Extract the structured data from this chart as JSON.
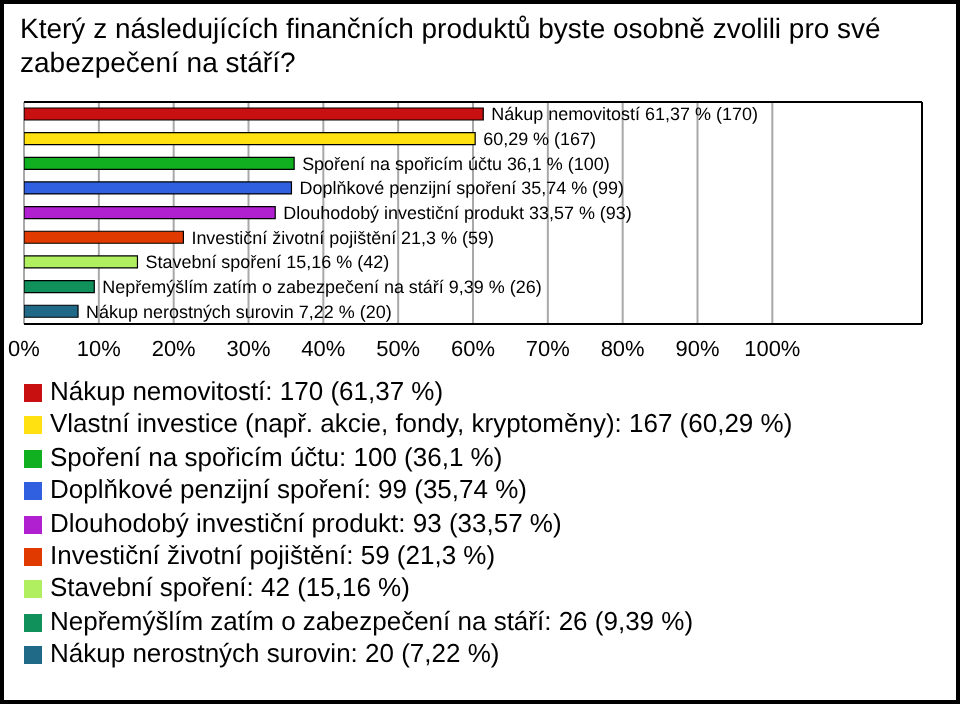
{
  "chart_data": {
    "type": "bar",
    "orientation": "horizontal",
    "stacked": true,
    "title": "Který z následujících finančních produktů byste osobně zvolili pro své zabezpečení na stáří?",
    "categories": [
      null,
      null,
      null,
      null,
      null,
      null,
      null,
      null,
      null
    ],
    "series": [
      {
        "name": "Nákup nemovitostí: 170 (61,37 %)",
        "color": "#c81010",
        "values": [
          61.37,
          null,
          null,
          null,
          null,
          null,
          null,
          null,
          null
        ],
        "value_labels": [
          "Nákup nemovitostí 61,37 % (170)",
          null,
          null,
          null,
          null,
          null,
          null,
          null,
          null
        ]
      },
      {
        "name": "Vlastní investice (např. akcie, fondy, kryptoměny): 167 (60,29 %)",
        "color": "#ffe010",
        "values": [
          null,
          60.29,
          null,
          null,
          null,
          null,
          null,
          null,
          null
        ],
        "value_labels": [
          null,
          "60,29 % (167)",
          null,
          null,
          null,
          null,
          null,
          null,
          null
        ]
      },
      {
        "name": "Spoření na spořicím účtu: 100 (36,1 %)",
        "color": "#10b020",
        "values": [
          null,
          null,
          36.1,
          null,
          null,
          null,
          null,
          null,
          null
        ],
        "value_labels": [
          null,
          null,
          "Spoření na spořicím účtu 36,1 % (100)",
          null,
          null,
          null,
          null,
          null,
          null
        ]
      },
      {
        "name": "Doplňkové penzijní spoření: 99 (35,74 %)",
        "color": "#3060e0",
        "values": [
          null,
          null,
          null,
          35.74,
          null,
          null,
          null,
          null,
          null
        ],
        "value_labels": [
          null,
          null,
          null,
          "Doplňkové penzijní spoření 35,74 % (99)",
          null,
          null,
          null,
          null,
          null
        ]
      },
      {
        "name": "Dlouhodobý investiční produkt: 93 (33,57 %)",
        "color": "#b020d0",
        "values": [
          null,
          null,
          null,
          null,
          33.57,
          null,
          null,
          null,
          null
        ],
        "value_labels": [
          null,
          null,
          null,
          null,
          "Dlouhodobý investiční produkt 33,57 % (93)",
          null,
          null,
          null,
          null
        ]
      },
      {
        "name": "Investiční životní pojištění: 59 (21,3 %)",
        "color": "#e03a00",
        "values": [
          null,
          null,
          null,
          null,
          null,
          21.3,
          null,
          null,
          null
        ],
        "value_labels": [
          null,
          null,
          null,
          null,
          null,
          "Investiční životní pojištění 21,3 % (59)",
          null,
          null,
          null
        ]
      },
      {
        "name": "Stavební spoření: 42 (15,16 %)",
        "color": "#b0f060",
        "values": [
          null,
          null,
          null,
          null,
          null,
          null,
          15.16,
          null,
          null
        ],
        "value_labels": [
          null,
          null,
          null,
          null,
          null,
          null,
          "Stavební spoření 15,16 % (42)",
          null,
          null
        ]
      },
      {
        "name": "Nepřemýšlím zatím o zabezpečení na stáří: 26 (9,39 %)",
        "color": "#10905a",
        "values": [
          null,
          null,
          null,
          null,
          null,
          null,
          null,
          9.39,
          null
        ],
        "value_labels": [
          null,
          null,
          null,
          null,
          null,
          null,
          null,
          "Nepřemýšlím zatím o zabezpečení na stáří 9,39 % (26)",
          null
        ]
      },
      {
        "name": "Nákup nerostných surovin: 20 (7,22 %)",
        "color": "#206a88",
        "values": [
          null,
          null,
          null,
          null,
          null,
          null,
          null,
          null,
          7.22
        ],
        "value_labels": [
          null,
          null,
          null,
          null,
          null,
          null,
          null,
          null,
          "Nákup nerostných surovin 7,22 % (20)"
        ]
      }
    ],
    "xlim": [
      0,
      120
    ],
    "xticks": [
      {
        "value": 0,
        "label": "0%"
      },
      {
        "value": 10,
        "label": "10%"
      },
      {
        "value": 20,
        "label": "20%"
      },
      {
        "value": 30,
        "label": "30%"
      },
      {
        "value": 40,
        "label": "40%"
      },
      {
        "value": 50,
        "label": "50%"
      },
      {
        "value": 60,
        "label": "60%"
      },
      {
        "value": 70,
        "label": "70%"
      },
      {
        "value": 80,
        "label": "80%"
      },
      {
        "value": 90,
        "label": "90%"
      },
      {
        "value": 100,
        "label": "100%"
      }
    ],
    "grid": "x",
    "legend": "bottom",
    "tick_labels": "x"
  }
}
